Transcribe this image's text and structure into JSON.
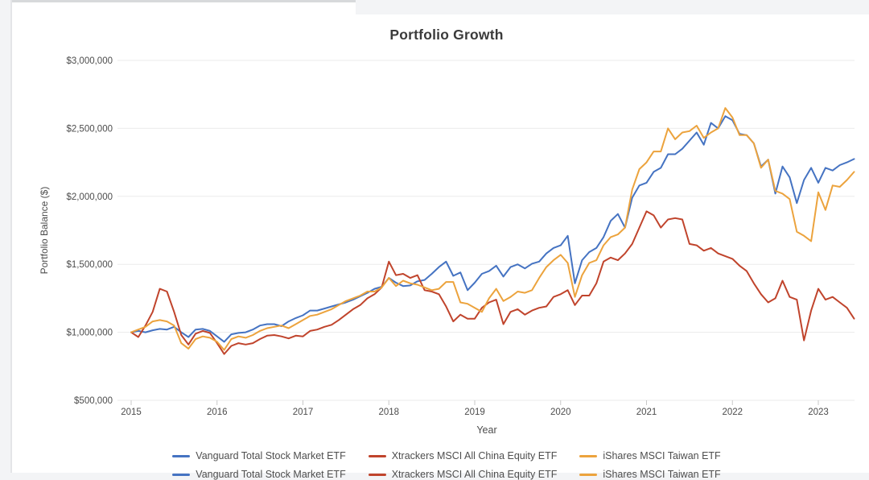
{
  "page": {
    "background_color": "#f3f4f6",
    "card_color": "#ffffff"
  },
  "chart_data": {
    "type": "line",
    "title": "Portfolio Growth",
    "xlabel": "Year",
    "ylabel": "Portfolio Balance ($)",
    "x_start": "2015-01",
    "x_interval": "monthly",
    "x_tick_labels": [
      "2015",
      "2016",
      "2017",
      "2018",
      "2019",
      "2020",
      "2021",
      "2022",
      "2023"
    ],
    "y_ticks": [
      {
        "value": 500000,
        "label": "$500,000"
      },
      {
        "value": 1000000,
        "label": "$1,000,000"
      },
      {
        "value": 1500000,
        "label": "$1,500,000"
      },
      {
        "value": 2000000,
        "label": "$2,000,000"
      },
      {
        "value": 2500000,
        "label": "$2,500,000"
      },
      {
        "value": 3000000,
        "label": "$3,000,000"
      }
    ],
    "ylim": [
      500000,
      3000000
    ],
    "grid": "horizontal",
    "legend_position": "bottom",
    "gridline_color": "#ebebeb",
    "tick_color": "#c9c9c9",
    "series": [
      {
        "name": "Vanguard Total Stock Market ETF",
        "color": "#4573C2",
        "values": [
          1000000,
          1010000,
          1000000,
          1015000,
          1025000,
          1020000,
          1040000,
          1000000,
          965000,
          1020000,
          1025000,
          1010000,
          970000,
          930000,
          985000,
          995000,
          1000000,
          1020000,
          1050000,
          1060000,
          1060000,
          1045000,
          1080000,
          1105000,
          1125000,
          1160000,
          1160000,
          1175000,
          1190000,
          1205000,
          1220000,
          1240000,
          1265000,
          1290000,
          1320000,
          1335000,
          1400000,
          1365000,
          1340000,
          1345000,
          1375000,
          1385000,
          1430000,
          1480000,
          1520000,
          1415000,
          1440000,
          1310000,
          1365000,
          1430000,
          1450000,
          1490000,
          1410000,
          1480000,
          1500000,
          1470000,
          1505000,
          1520000,
          1580000,
          1620000,
          1640000,
          1710000,
          1360000,
          1530000,
          1590000,
          1620000,
          1700000,
          1820000,
          1870000,
          1770000,
          1990000,
          2080000,
          2100000,
          2180000,
          2210000,
          2310000,
          2310000,
          2350000,
          2410000,
          2470000,
          2380000,
          2540000,
          2500000,
          2590000,
          2560000,
          2460000,
          2450000,
          2390000,
          2220000,
          2270000,
          2020000,
          2220000,
          2140000,
          1950000,
          2120000,
          2210000,
          2100000,
          2210000,
          2190000,
          2230000,
          2250000,
          2275000
        ]
      },
      {
        "name": "Xtrackers MSCI All China Equity ETF",
        "color": "#C0442C",
        "values": [
          1000000,
          965000,
          1050000,
          1150000,
          1320000,
          1300000,
          1150000,
          980000,
          910000,
          990000,
          1010000,
          995000,
          920000,
          840000,
          900000,
          920000,
          910000,
          920000,
          950000,
          975000,
          980000,
          970000,
          955000,
          975000,
          970000,
          1010000,
          1020000,
          1040000,
          1055000,
          1090000,
          1130000,
          1170000,
          1200000,
          1250000,
          1280000,
          1330000,
          1520000,
          1420000,
          1430000,
          1400000,
          1420000,
          1310000,
          1300000,
          1280000,
          1190000,
          1080000,
          1130000,
          1100000,
          1100000,
          1180000,
          1220000,
          1240000,
          1060000,
          1150000,
          1170000,
          1130000,
          1160000,
          1180000,
          1190000,
          1260000,
          1280000,
          1310000,
          1200000,
          1270000,
          1270000,
          1360000,
          1520000,
          1550000,
          1530000,
          1580000,
          1650000,
          1770000,
          1890000,
          1860000,
          1770000,
          1830000,
          1840000,
          1830000,
          1650000,
          1640000,
          1600000,
          1620000,
          1580000,
          1560000,
          1540000,
          1490000,
          1450000,
          1360000,
          1280000,
          1220000,
          1250000,
          1380000,
          1260000,
          1240000,
          940000,
          1160000,
          1320000,
          1240000,
          1260000,
          1220000,
          1180000,
          1100000
        ]
      },
      {
        "name": "iShares MSCI Taiwan ETF",
        "color": "#ECA33D",
        "values": [
          1000000,
          1020000,
          1040000,
          1080000,
          1090000,
          1080000,
          1050000,
          920000,
          880000,
          950000,
          970000,
          960000,
          930000,
          870000,
          950000,
          970000,
          960000,
          980000,
          1010000,
          1030000,
          1040000,
          1050000,
          1030000,
          1060000,
          1090000,
          1120000,
          1130000,
          1150000,
          1170000,
          1200000,
          1230000,
          1250000,
          1270000,
          1300000,
          1300000,
          1330000,
          1400000,
          1340000,
          1380000,
          1360000,
          1350000,
          1330000,
          1310000,
          1320000,
          1370000,
          1370000,
          1220000,
          1210000,
          1180000,
          1150000,
          1250000,
          1320000,
          1230000,
          1260000,
          1300000,
          1290000,
          1310000,
          1400000,
          1480000,
          1530000,
          1570000,
          1510000,
          1260000,
          1420000,
          1510000,
          1530000,
          1640000,
          1700000,
          1720000,
          1770000,
          2050000,
          2200000,
          2250000,
          2330000,
          2330000,
          2500000,
          2420000,
          2470000,
          2480000,
          2520000,
          2430000,
          2470000,
          2500000,
          2650000,
          2580000,
          2450000,
          2450000,
          2390000,
          2210000,
          2270000,
          2040000,
          2020000,
          1980000,
          1740000,
          1710000,
          1670000,
          2030000,
          1900000,
          2080000,
          2070000,
          2120000,
          2180000
        ]
      }
    ]
  }
}
